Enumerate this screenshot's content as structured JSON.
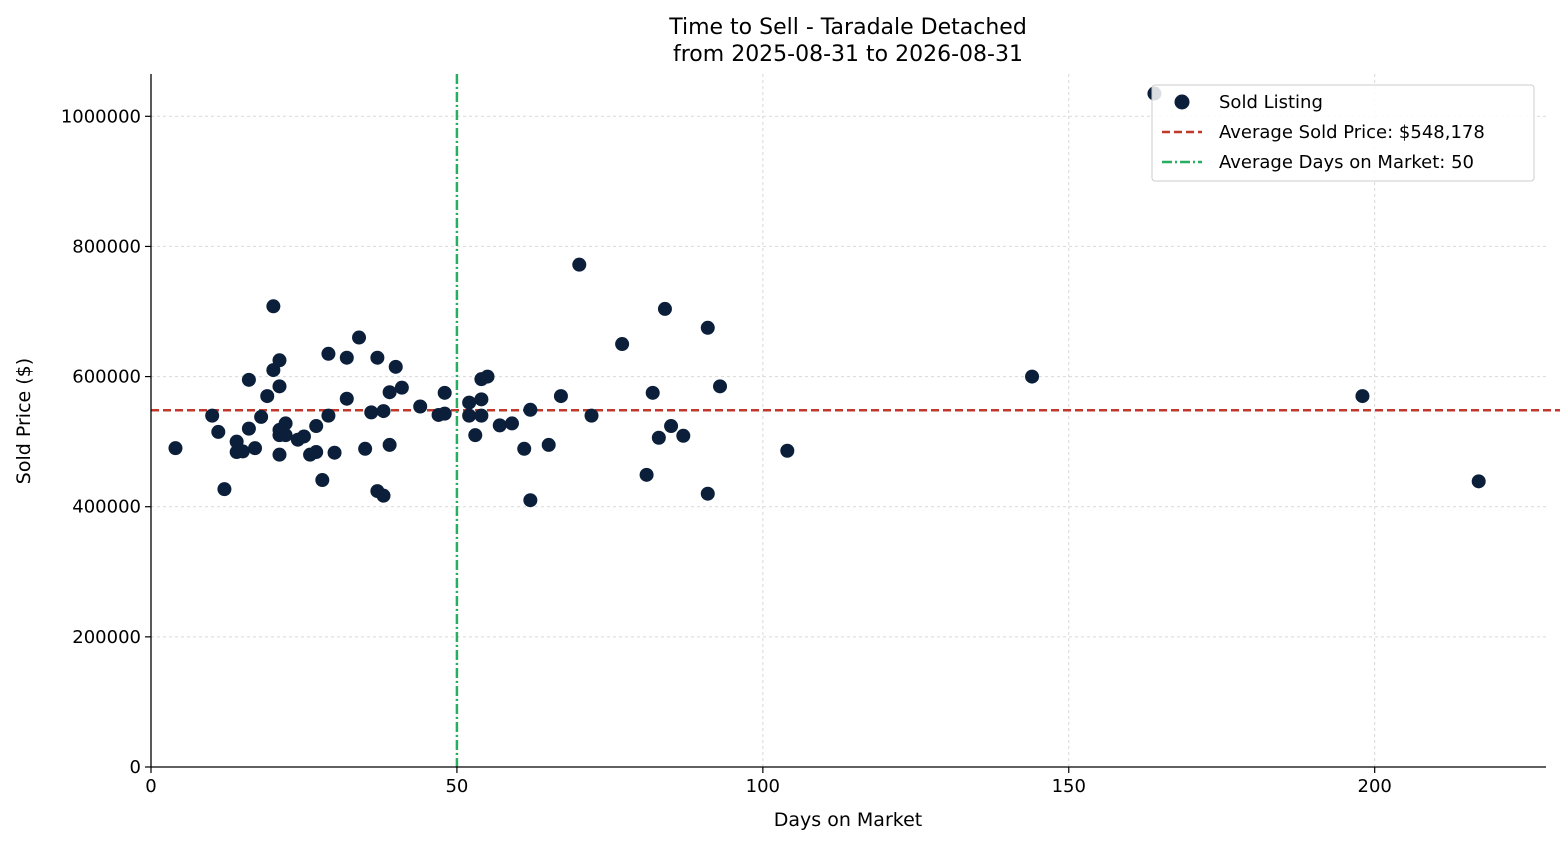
{
  "chart_data": {
    "type": "scatter",
    "title_line1": "Time to Sell - Taradale Detached",
    "title_line2": "from 2025-08-31 to 2026-08-31",
    "xlabel": "Days on Market",
    "ylabel": "Sold Price ($)",
    "xlim": [
      0,
      228
    ],
    "ylim": [
      0,
      1065000
    ],
    "xticks": [
      0,
      50,
      100,
      150,
      200
    ],
    "yticks": [
      0,
      200000,
      400000,
      600000,
      800000,
      1000000
    ],
    "grid": true,
    "legend_position": "top-right",
    "colors": {
      "points": "#0b1f3a",
      "avg_price": "#c0392b",
      "avg_days": "#27ae60"
    },
    "legend": {
      "points": "Sold Listing",
      "avg_price": "Average Sold Price: $548,178",
      "avg_days": "Average Days on Market: 50"
    },
    "avg_price": 548178,
    "avg_days": 50,
    "series": [
      {
        "name": "Sold Listing",
        "points": [
          [
            4,
            490000
          ],
          [
            10,
            540000
          ],
          [
            11,
            515000
          ],
          [
            12,
            427000
          ],
          [
            14,
            500000
          ],
          [
            14,
            484000
          ],
          [
            15,
            485000
          ],
          [
            16,
            595000
          ],
          [
            16,
            520000
          ],
          [
            17,
            490000
          ],
          [
            18,
            538000
          ],
          [
            19,
            570000
          ],
          [
            20,
            708000
          ],
          [
            20,
            610000
          ],
          [
            21,
            625000
          ],
          [
            21,
            585000
          ],
          [
            21,
            518000
          ],
          [
            21,
            510000
          ],
          [
            21,
            480000
          ],
          [
            22,
            528000
          ],
          [
            22,
            510000
          ],
          [
            24,
            503000
          ],
          [
            25,
            508000
          ],
          [
            26,
            480000
          ],
          [
            27,
            484000
          ],
          [
            27,
            524000
          ],
          [
            28,
            441000
          ],
          [
            29,
            635000
          ],
          [
            29,
            540000
          ],
          [
            30,
            483000
          ],
          [
            32,
            629000
          ],
          [
            32,
            566000
          ],
          [
            34,
            660000
          ],
          [
            35,
            489000
          ],
          [
            36,
            545000
          ],
          [
            37,
            629000
          ],
          [
            37,
            424000
          ],
          [
            38,
            417000
          ],
          [
            38,
            547000
          ],
          [
            39,
            576000
          ],
          [
            39,
            495000
          ],
          [
            40,
            615000
          ],
          [
            41,
            583000
          ],
          [
            44,
            554000
          ],
          [
            47,
            541000
          ],
          [
            48,
            575000
          ],
          [
            48,
            543000
          ],
          [
            52,
            560000
          ],
          [
            52,
            540000
          ],
          [
            53,
            510000
          ],
          [
            54,
            596000
          ],
          [
            54,
            565000
          ],
          [
            54,
            540000
          ],
          [
            55,
            600000
          ],
          [
            57,
            525000
          ],
          [
            59,
            528000
          ],
          [
            61,
            489000
          ],
          [
            62,
            549000
          ],
          [
            62,
            410000
          ],
          [
            65,
            495000
          ],
          [
            67,
            570000
          ],
          [
            70,
            772000
          ],
          [
            72,
            540000
          ],
          [
            77,
            650000
          ],
          [
            81,
            449000
          ],
          [
            82,
            575000
          ],
          [
            83,
            506000
          ],
          [
            84,
            704000
          ],
          [
            85,
            524000
          ],
          [
            87,
            509000
          ],
          [
            91,
            675000
          ],
          [
            91,
            420000
          ],
          [
            93,
            585000
          ],
          [
            104,
            486000
          ],
          [
            144,
            600000
          ],
          [
            164,
            1035000
          ],
          [
            198,
            570000
          ],
          [
            217,
            439000
          ]
        ]
      }
    ]
  }
}
